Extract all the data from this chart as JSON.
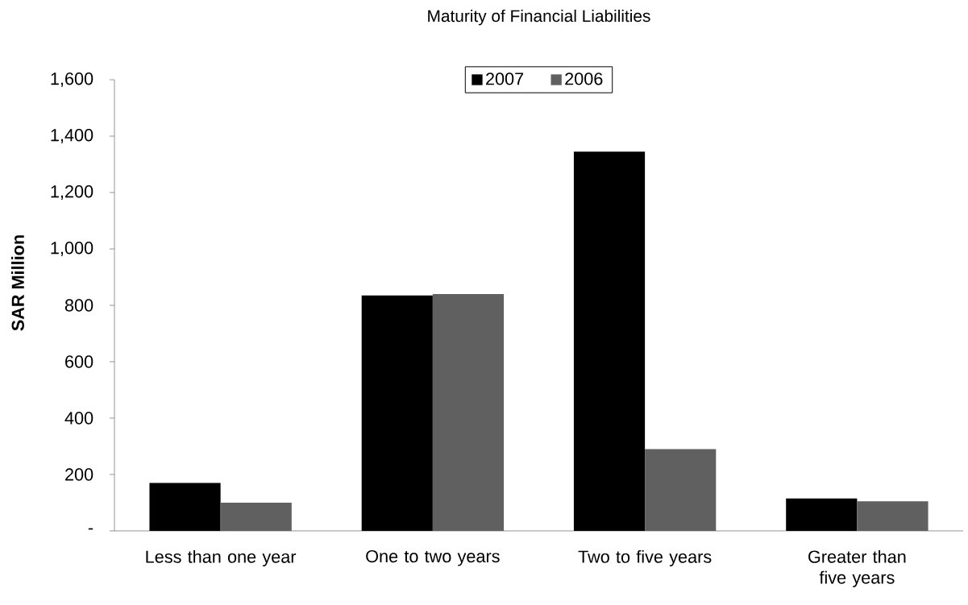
{
  "chart_data": {
    "type": "bar",
    "title": "Maturity of Financial Liabilities",
    "ylabel": "SAR Million",
    "categories": [
      "Less than one year",
      "One to two years",
      "Two to five years",
      "Greater than five years"
    ],
    "series": [
      {
        "name": "2007",
        "color": "#000000",
        "values": [
          170,
          835,
          1345,
          115
        ]
      },
      {
        "name": "2006",
        "color": "#606060",
        "values": [
          100,
          840,
          290,
          105
        ]
      }
    ],
    "ylim": [
      0,
      1600
    ],
    "yticks": [
      {
        "value": 0,
        "label": "-"
      },
      200,
      400,
      600,
      800,
      {
        "value": 1000,
        "label": "1,000"
      },
      {
        "value": 1200,
        "label": "1,200"
      },
      {
        "value": 1400,
        "label": "1,400"
      },
      {
        "value": 1600,
        "label": "1,600"
      }
    ],
    "legend": "top"
  }
}
